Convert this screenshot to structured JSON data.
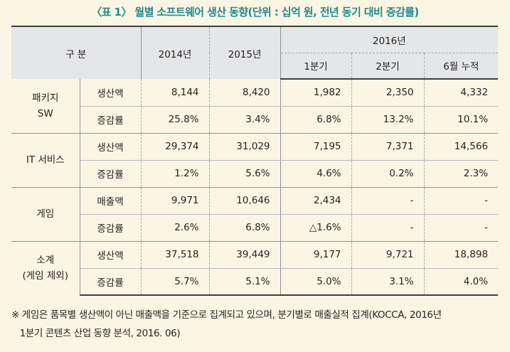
{
  "title": "〈표 1〉 월별 소프트웨어 생산 동향(단위 : 십억 원, 전년 동기 대비 증감률)",
  "header": {
    "category": "구 분",
    "y2014": "2014년",
    "y2015": "2015년",
    "y2016": "2016년",
    "q1": "1분기",
    "q2": "2분기",
    "h6": "6월 누적"
  },
  "groups": [
    {
      "name_line1": "패키지",
      "name_line2": "SW",
      "rows": [
        {
          "metric": "생산액",
          "y2014": "8,144",
          "y2015": "8,420",
          "q1": "1,982",
          "q2": "2,350",
          "h6": "4,332"
        },
        {
          "metric": "증감률",
          "y2014": "25.8%",
          "y2015": "3.4%",
          "q1": "6.8%",
          "q2": "13.2%",
          "h6": "10.1%"
        }
      ]
    },
    {
      "name_line1": "IT 서비스",
      "name_line2": "",
      "rows": [
        {
          "metric": "생산액",
          "y2014": "29,374",
          "y2015": "31,029",
          "q1": "7,195",
          "q2": "7,371",
          "h6": "14,566"
        },
        {
          "metric": "증감률",
          "y2014": "1.2%",
          "y2015": "5.6%",
          "q1": "4.6%",
          "q2": "0.2%",
          "h6": "2.3%"
        }
      ]
    },
    {
      "name_line1": "게임",
      "name_line2": "",
      "rows": [
        {
          "metric": "매출액",
          "y2014": "9,971",
          "y2015": "10,646",
          "q1": "2,434",
          "q2": "-",
          "h6": "-"
        },
        {
          "metric": "증감률",
          "y2014": "2.6%",
          "y2015": "6.8%",
          "q1": "△1.6%",
          "q2": "-",
          "h6": "-"
        }
      ]
    },
    {
      "name_line1": "소계",
      "name_line2": "(게임 제외)",
      "rows": [
        {
          "metric": "생산액",
          "y2014": "37,518",
          "y2015": "39,449",
          "q1": "9,177",
          "q2": "9,721",
          "h6": "18,898"
        },
        {
          "metric": "증감률",
          "y2014": "5.7%",
          "y2015": "5.1%",
          "q1": "5.0%",
          "q2": "3.1%",
          "h6": "4.0%"
        }
      ]
    }
  ],
  "note_line1": "※ 게임은 품목별 생산액이 아닌 매출액을 기준으로 집계되고 있으며, 분기별로 매출실적 집계(KOCCA, 2016년",
  "note_line2": "   1분기 콘텐츠 산업 동향 분석, 2016. 06)"
}
